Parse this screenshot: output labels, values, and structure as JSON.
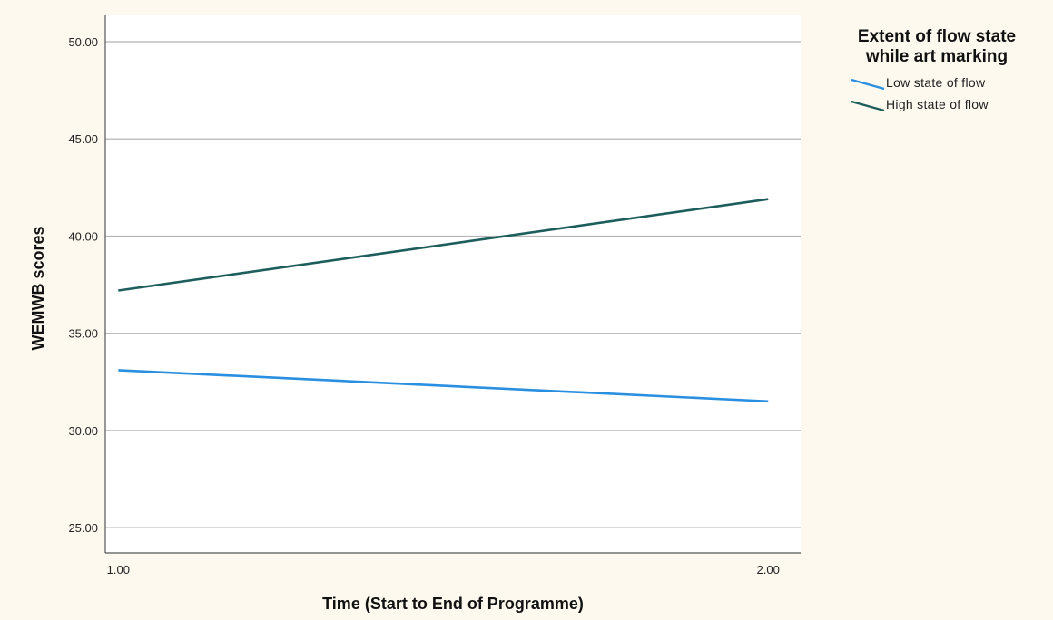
{
  "chart_data": {
    "type": "line",
    "xlabel": "Time (Start to End of Programme)",
    "ylabel": "WEMWB scores",
    "x": [
      1.0,
      2.0
    ],
    "x_tick_labels": [
      "1.00",
      "2.00"
    ],
    "xlim": [
      0.98,
      2.05
    ],
    "ylim": [
      23.7,
      51.4
    ],
    "y_ticks": [
      25,
      30,
      35,
      40,
      45,
      50
    ],
    "y_tick_labels": [
      "25.00",
      "30.00",
      "35.00",
      "40.00",
      "45.00",
      "50.00"
    ],
    "grid": "horizontal",
    "legend_position": "top-right",
    "legend_title": "Extent of flow state while art marking",
    "legend_title_lines": [
      "Extent of flow state",
      "while art marking"
    ],
    "series": [
      {
        "name": "Low state of flow",
        "values": [
          33.1,
          31.5
        ],
        "color": "#2a8fe0"
      },
      {
        "name": "High state of flow",
        "values": [
          37.2,
          41.9
        ],
        "color": "#1d5e5c"
      }
    ]
  }
}
